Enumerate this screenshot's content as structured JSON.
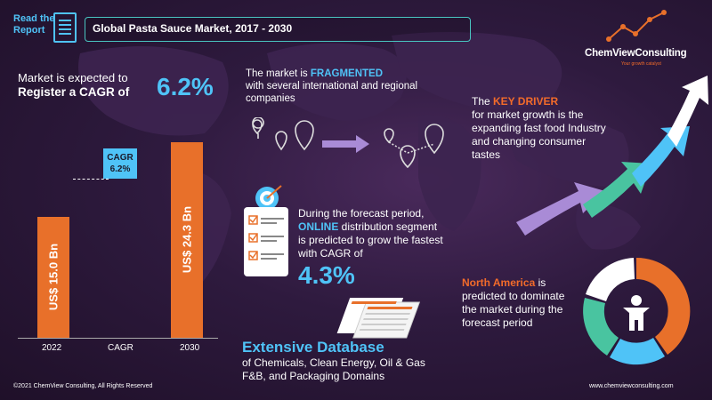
{
  "header": {
    "read_line1": "Read the",
    "read_line2": "Report",
    "title": "Global Pasta  Sauce Market, 2017  - 2030"
  },
  "logo": {
    "name": "ChemViewConsulting",
    "tagline": "Your growth catalyst"
  },
  "cagr_section": {
    "line1": "Market is expected to",
    "line2": "Register a CAGR of",
    "value": "6.2%"
  },
  "chart_data": {
    "type": "bar",
    "categories": [
      "2022",
      "CAGR",
      "2030"
    ],
    "values": [
      15.0,
      null,
      24.3
    ],
    "bar_labels": [
      "US$ 15.0 Bn",
      "",
      "US$ 24.3 Bn"
    ],
    "cagr_label_line1": "CAGR",
    "cagr_label_line2": "6.2%",
    "ylim": [
      0,
      24.3
    ],
    "colors": {
      "bar": "#e8702a",
      "cagr_box": "#4fc3f7"
    }
  },
  "fragmented": {
    "pre": "The market is ",
    "highlight": "FRAGMENTED",
    "line2": "with several international and regional",
    "line3": "companies"
  },
  "driver": {
    "pre": "The ",
    "highlight": "KEY DRIVER",
    "rest": "for market growth is the expanding fast food Industry and changing consumer tastes"
  },
  "online": {
    "line1": "During the forecast period,",
    "highlight": "ONLINE",
    "rest1": " distribution segment",
    "rest2": "is predicted to grow the fastest",
    "rest3": "with CAGR of",
    "value": "4.3%"
  },
  "north_america": {
    "highlight": "North America",
    "rest1": " is",
    "rest2": "predicted to dominate the market during the forecast period"
  },
  "database": {
    "title": "Extensive Database",
    "line1": "of Chemicals, Clean Energy, Oil & Gas",
    "line2": "F&B, and Packaging Domains"
  },
  "footer": {
    "copyright": "©2021  ChemView  Consulting,  All Rights Reserved",
    "website": "www.chemviewconsulting.com"
  },
  "colors": {
    "accent_blue": "#4fc3f7",
    "accent_orange": "#f26b2a",
    "teal": "#49c4a0",
    "purple": "#a98bd6"
  }
}
